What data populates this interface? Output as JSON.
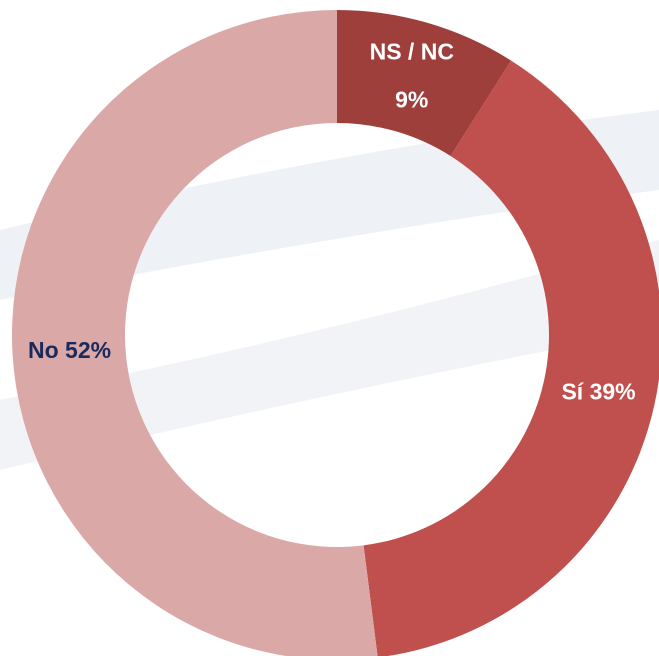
{
  "chart_data": {
    "type": "donut",
    "categories": [
      "NS / NC",
      "Sí",
      "No"
    ],
    "values": [
      9,
      39,
      52
    ],
    "value_labels": [
      "9%",
      "39%",
      "52%"
    ],
    "colors": [
      "#9e3f3c",
      "#c0504d",
      "#d9a8a7"
    ],
    "label_colors": [
      "#ffffff",
      "#ffffff",
      "#1b2a5c"
    ]
  }
}
